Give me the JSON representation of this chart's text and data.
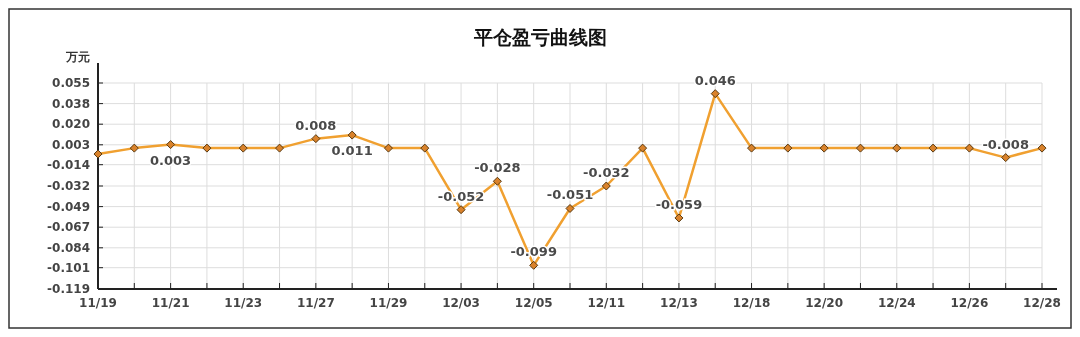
{
  "chart_data": {
    "type": "line",
    "title": "平仓盈亏曲线图",
    "ylabel": "万元",
    "categories": [
      "11/19",
      null,
      "11/21",
      null,
      "11/23",
      null,
      "11/27",
      null,
      "11/29",
      null,
      "12/03",
      null,
      "12/05",
      null,
      "12/11",
      null,
      "12/13",
      null,
      "12/18",
      null,
      "12/20",
      null,
      "12/24",
      null,
      "12/26",
      null,
      "12/28"
    ],
    "series": [
      {
        "color": "#f0a030",
        "values": [
          -0.005,
          0.0,
          0.003,
          0.0,
          0.0,
          0.0,
          0.008,
          0.011,
          0.0,
          0.0,
          -0.052,
          -0.028,
          -0.099,
          -0.051,
          -0.032,
          0.0,
          -0.059,
          0.046,
          0.0,
          0.0,
          0.0,
          0.0,
          0.0,
          0.0,
          0.0,
          -0.008,
          0.0
        ],
        "value_labels": [
          null,
          null,
          "0.003",
          null,
          null,
          null,
          "0.008",
          "0.011",
          null,
          null,
          "-0.052",
          "-0.028",
          "-0.099",
          "-0.051",
          "-0.032",
          null,
          "-0.059",
          "0.046",
          null,
          null,
          null,
          null,
          null,
          null,
          null,
          "-0.008",
          null
        ]
      }
    ],
    "ylim": [
      -0.119,
      0.055
    ],
    "yticks": [
      {
        "value": -0.119,
        "label": "-0.119"
      },
      -0.101,
      {
        "value": -0.0842,
        "label": "-0.084"
      },
      {
        "value": -0.0668,
        "label": "-0.067"
      },
      {
        "value": -0.0494,
        "label": "-0.049"
      },
      {
        "value": -0.032,
        "label": "-0.032"
      },
      -0.014,
      {
        "value": 0.0028,
        "label": "0.003"
      },
      {
        "value": 0.0202,
        "label": "0.020"
      },
      {
        "value": 0.0376,
        "label": "0.038"
      },
      {
        "value": 0.055,
        "label": "0.055"
      }
    ],
    "grid": true,
    "marker": "diamond",
    "line_style": "solid"
  }
}
